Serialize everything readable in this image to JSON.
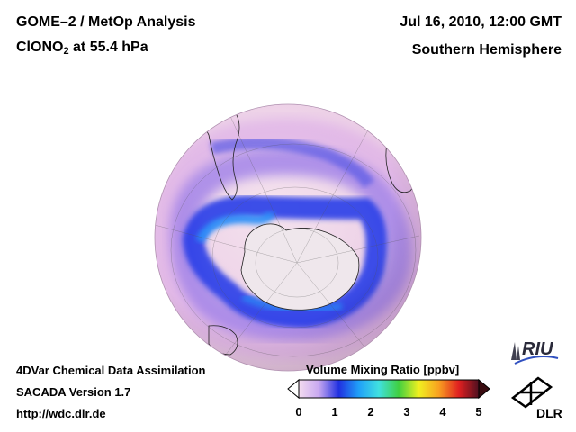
{
  "header": {
    "title_line1": "GOME–2 / MetOp Analysis",
    "species_prefix": "ClONO",
    "species_subscript": "2",
    "species_suffix": " at 55.4 hPa",
    "date": "Jul 16, 2010, 12:00 GMT",
    "region": "Southern Hemisphere"
  },
  "footer": {
    "line1": "4DVar Chemical Data Assimilation",
    "line2": "SACADA Version 1.7",
    "line3": "http://wdc.dlr.de"
  },
  "colorbar": {
    "title": "Volume Mixing Ratio [ppbv]",
    "ticks": [
      "0",
      "1",
      "2",
      "3",
      "4",
      "5"
    ],
    "range": [
      0,
      5
    ],
    "colors": [
      "#f4dcef",
      "#c8a8f0",
      "#2030e0",
      "#20a0f8",
      "#40e0e0",
      "#40d040",
      "#f0f020",
      "#f8a020",
      "#e02020",
      "#501020"
    ]
  },
  "logos": {
    "riu": "RIU",
    "dlr": "DLR"
  }
}
